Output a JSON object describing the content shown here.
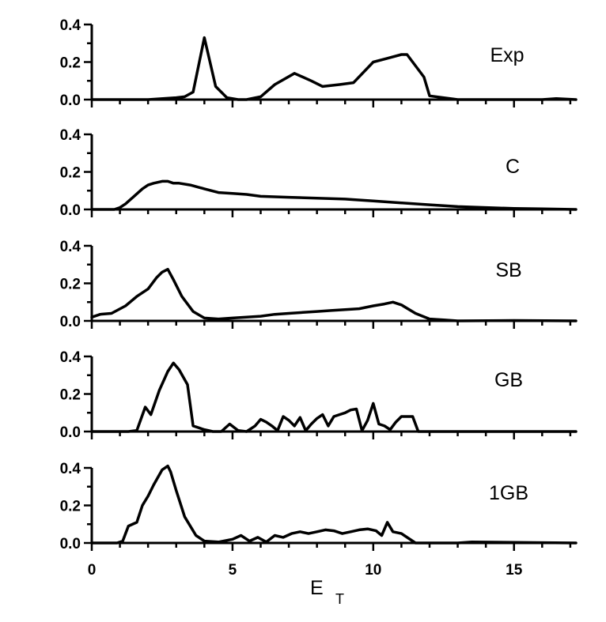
{
  "chart_data": {
    "type": "line",
    "xlabel": "E",
    "xlabel_subscript": "T",
    "xlim": [
      0,
      17.2
    ],
    "x_ticks": [
      0,
      5,
      10,
      15
    ],
    "x_tick_labels": [
      "0",
      "5",
      "10",
      "15"
    ],
    "ylim": [
      0,
      0.4
    ],
    "y_tick_labels": [
      "0.0",
      "0.2",
      "0.4"
    ],
    "grid": false,
    "panels": [
      {
        "label": "Exp",
        "x": [
          0,
          1,
          2,
          3,
          3.3,
          3.6,
          4.0,
          4.4,
          4.8,
          5.2,
          5.5,
          6.0,
          6.5,
          7.2,
          7.8,
          8.2,
          8.8,
          9.3,
          10.0,
          10.5,
          11.0,
          11.2,
          11.8,
          12.0,
          13,
          14,
          15,
          16,
          16.5,
          17.2
        ],
        "y": [
          0,
          0,
          0,
          0.01,
          0.015,
          0.04,
          0.33,
          0.07,
          0.01,
          0,
          0,
          0.015,
          0.08,
          0.14,
          0.1,
          0.07,
          0.08,
          0.09,
          0.2,
          0.22,
          0.24,
          0.24,
          0.12,
          0.02,
          0,
          0,
          0,
          0,
          0.005,
          0
        ]
      },
      {
        "label": "C",
        "x": [
          0,
          0.8,
          1.0,
          1.2,
          1.5,
          1.8,
          2.0,
          2.2,
          2.5,
          2.7,
          2.9,
          3.1,
          3.5,
          4.0,
          4.5,
          5.0,
          5.5,
          6.0,
          7.0,
          8.0,
          9.0,
          10.0,
          11.0,
          12.0,
          13.0,
          14.0,
          15.0,
          16.0,
          17.2
        ],
        "y": [
          0,
          0,
          0.01,
          0.03,
          0.07,
          0.11,
          0.13,
          0.14,
          0.15,
          0.15,
          0.14,
          0.14,
          0.13,
          0.11,
          0.09,
          0.085,
          0.08,
          0.07,
          0.065,
          0.06,
          0.055,
          0.045,
          0.035,
          0.025,
          0.015,
          0.01,
          0.005,
          0.003,
          0
        ]
      },
      {
        "label": "SB",
        "x": [
          0,
          0.3,
          0.7,
          1.2,
          1.6,
          2.0,
          2.3,
          2.5,
          2.7,
          2.9,
          3.2,
          3.6,
          4.0,
          4.5,
          5.0,
          5.5,
          6.0,
          6.5,
          7.0,
          7.5,
          8.0,
          8.5,
          9.0,
          9.5,
          10.0,
          10.4,
          10.7,
          11.0,
          11.5,
          12.0,
          12.5,
          13.0,
          15.0,
          17.2
        ],
        "y": [
          0.02,
          0.035,
          0.04,
          0.08,
          0.13,
          0.17,
          0.23,
          0.26,
          0.275,
          0.22,
          0.13,
          0.05,
          0.015,
          0.01,
          0.015,
          0.02,
          0.025,
          0.035,
          0.04,
          0.045,
          0.05,
          0.055,
          0.06,
          0.065,
          0.08,
          0.09,
          0.1,
          0.085,
          0.04,
          0.01,
          0.005,
          0,
          0.002,
          0
        ]
      },
      {
        "label": "GB",
        "x": [
          0,
          1.0,
          1.3,
          1.6,
          1.9,
          2.1,
          2.4,
          2.7,
          2.9,
          3.1,
          3.4,
          3.6,
          4.0,
          4.3,
          4.6,
          4.9,
          5.2,
          5.5,
          5.8,
          6.0,
          6.2,
          6.4,
          6.6,
          6.8,
          7.0,
          7.2,
          7.4,
          7.6,
          7.8,
          8.0,
          8.2,
          8.4,
          8.6,
          8.8,
          9.0,
          9.2,
          9.4,
          9.6,
          9.8,
          10.0,
          10.2,
          10.4,
          10.6,
          10.8,
          11.0,
          11.2,
          11.4,
          11.6,
          12.0,
          17.2
        ],
        "y": [
          0,
          0,
          0,
          0.005,
          0.13,
          0.09,
          0.22,
          0.32,
          0.365,
          0.33,
          0.25,
          0.03,
          0.01,
          0,
          0,
          0.04,
          0.005,
          0,
          0.03,
          0.065,
          0.05,
          0.03,
          0.005,
          0.08,
          0.06,
          0.03,
          0.075,
          0.005,
          0.04,
          0.07,
          0.09,
          0.03,
          0.08,
          0.09,
          0.1,
          0.115,
          0.12,
          0.005,
          0.06,
          0.15,
          0.04,
          0.03,
          0.01,
          0.05,
          0.08,
          0.08,
          0.08,
          0,
          0,
          0
        ]
      },
      {
        "label": "1GB",
        "x": [
          0,
          0.9,
          1.1,
          1.3,
          1.6,
          1.8,
          2.0,
          2.2,
          2.5,
          2.7,
          2.8,
          3.0,
          3.3,
          3.7,
          4.0,
          4.5,
          5.0,
          5.3,
          5.6,
          5.9,
          6.2,
          6.5,
          6.8,
          7.1,
          7.4,
          7.7,
          8.0,
          8.3,
          8.6,
          8.9,
          9.2,
          9.5,
          9.8,
          10.1,
          10.3,
          10.5,
          10.7,
          11.0,
          11.5,
          12.0,
          13.0,
          13.5,
          17.2
        ],
        "y": [
          0,
          0,
          0.01,
          0.09,
          0.11,
          0.2,
          0.25,
          0.31,
          0.39,
          0.41,
          0.38,
          0.28,
          0.14,
          0.04,
          0.01,
          0.005,
          0.02,
          0.04,
          0.01,
          0.03,
          0.005,
          0.04,
          0.03,
          0.05,
          0.06,
          0.05,
          0.06,
          0.07,
          0.065,
          0.05,
          0.06,
          0.07,
          0.075,
          0.065,
          0.04,
          0.11,
          0.06,
          0.05,
          0,
          0,
          0,
          0.005,
          0
        ]
      }
    ]
  }
}
